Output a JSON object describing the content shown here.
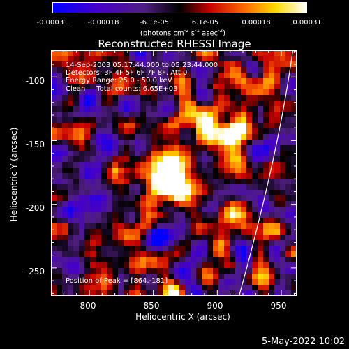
{
  "colorbar": {
    "ticks": [
      "-0.00031",
      "-0.00018",
      "-6.1e-05",
      "6.1e-05",
      "0.00018",
      "0.00031"
    ],
    "units_prefix": "(photons cm",
    "units_sup1": "-2",
    "units_mid": " s",
    "units_sup2": "-1",
    "units_mid2": " asec",
    "units_sup3": "-2",
    "units_suffix": ")",
    "range": [
      -0.00031,
      0.00031
    ]
  },
  "chart_data": {
    "type": "heatmap",
    "title": "Reconstructed RHESSI Image",
    "xlabel": "Heliocentric X (arcsec)",
    "ylabel": "Heliocentric Y (arcsec)",
    "xlim": [
      770,
      962
    ],
    "ylim": [
      -272,
      -79
    ],
    "x_ticks": [
      "800",
      "850",
      "900",
      "950"
    ],
    "y_ticks": [
      "-100",
      "-150",
      "-200",
      "-250"
    ],
    "x_tick_values": [
      800,
      850,
      900,
      950
    ],
    "y_tick_values": [
      -100,
      -150,
      -200,
      -250
    ],
    "peak": [
      864,
      -181
    ],
    "annotations": [
      "14-Sep-2003 05:17:44.000 to 05:23:44.000",
      "Detectors: 3F 4F 5F 6F 7F 8F, Att 0",
      "Energy Range: 25.0 - 50.0 keV",
      "Clean     Total counts: 6.65E+03"
    ],
    "peak_text": "Position of Peak = [864,-181]",
    "colors": {
      "low": "#0000ff",
      "mid": "#000000",
      "high": "#ffffff",
      "accent_red": "#e00000",
      "accent_orange": "#ff8c00",
      "accent_yellow": "#ffe000"
    }
  },
  "footer": {
    "date": "5-May-2022 10:02"
  }
}
